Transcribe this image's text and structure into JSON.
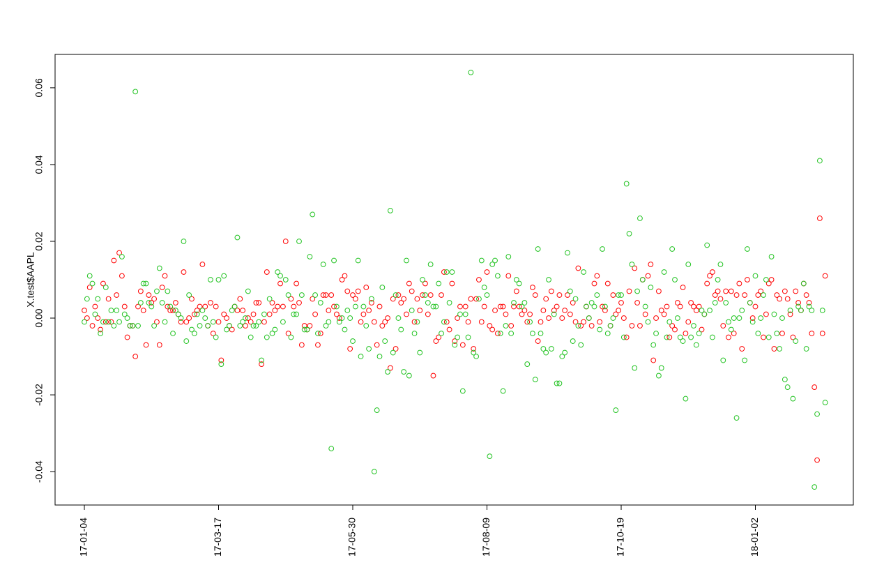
{
  "chart_data": {
    "type": "scatter",
    "y_label": "X.test$AAPL",
    "categories": [
      "17-01-04",
      null,
      null,
      null,
      null,
      null,
      null,
      null,
      null,
      null,
      null,
      null,
      null,
      null,
      null,
      null,
      null,
      null,
      null,
      null,
      null,
      null,
      null,
      null,
      null,
      null,
      null,
      null,
      null,
      null,
      null,
      null,
      null,
      null,
      null,
      null,
      null,
      null,
      null,
      null,
      null,
      null,
      null,
      null,
      null,
      null,
      null,
      null,
      null,
      null,
      "17-03-17",
      null,
      null,
      null,
      null,
      null,
      null,
      null,
      null,
      null,
      null,
      null,
      null,
      null,
      null,
      null,
      null,
      null,
      null,
      null,
      null,
      null,
      null,
      null,
      null,
      null,
      null,
      null,
      null,
      null,
      null,
      null,
      null,
      null,
      null,
      null,
      null,
      null,
      null,
      null,
      null,
      null,
      null,
      null,
      null,
      null,
      null,
      null,
      null,
      null,
      "17-05-30",
      null,
      null,
      null,
      null,
      null,
      null,
      null,
      null,
      null,
      null,
      null,
      null,
      null,
      null,
      null,
      null,
      null,
      null,
      null,
      null,
      null,
      null,
      null,
      null,
      null,
      null,
      null,
      null,
      null,
      null,
      null,
      null,
      null,
      null,
      null,
      null,
      null,
      null,
      null,
      null,
      null,
      null,
      null,
      null,
      null,
      null,
      null,
      null,
      null,
      "17-08-09",
      null,
      null,
      null,
      null,
      null,
      null,
      null,
      null,
      null,
      null,
      null,
      null,
      null,
      null,
      null,
      null,
      null,
      null,
      null,
      null,
      null,
      null,
      null,
      null,
      null,
      null,
      null,
      null,
      null,
      null,
      null,
      null,
      null,
      null,
      null,
      null,
      null,
      null,
      null,
      null,
      null,
      null,
      null,
      null,
      null,
      null,
      null,
      null,
      null,
      "17-10-19",
      null,
      null,
      null,
      null,
      null,
      null,
      null,
      null,
      null,
      null,
      null,
      null,
      null,
      null,
      null,
      null,
      null,
      null,
      null,
      null,
      null,
      null,
      null,
      null,
      null,
      null,
      null,
      null,
      null,
      null,
      null,
      null,
      null,
      null,
      null,
      null,
      null,
      null,
      null,
      null,
      null,
      null,
      null,
      null,
      null,
      null,
      null,
      null,
      null,
      "18-01-02",
      null,
      null,
      null,
      null,
      null,
      null,
      null,
      null,
      null,
      null,
      null,
      null,
      null,
      null,
      null,
      null,
      null,
      null,
      null,
      null,
      null,
      null,
      null,
      null,
      null,
      null,
      null,
      null,
      null,
      null,
      null,
      null,
      null,
      null,
      null,
      null,
      null,
      null,
      null,
      null,
      null,
      null,
      null,
      null,
      null,
      null,
      null,
      null,
      null,
      null,
      null,
      null,
      null,
      null,
      null,
      null,
      null,
      null,
      null,
      null,
      null,
      null,
      null,
      null,
      null,
      null,
      null,
      null,
      null,
      null,
      null,
      null,
      null,
      null,
      null,
      null
    ],
    "series": [
      {
        "color": "#ff0000",
        "values": [
          0.002,
          0.0,
          0.008,
          -0.002,
          0.003,
          0.0,
          -0.003,
          0.009,
          -0.001,
          0.005,
          -0.001,
          0.015,
          0.006,
          0.017,
          0.011,
          0.003,
          -0.005,
          -0.002,
          -0.002,
          -0.01,
          0.003,
          0.007,
          0.002,
          -0.007,
          0.006,
          0.004,
          0.005,
          -0.001,
          -0.007,
          0.008,
          0.011,
          0.003,
          0.002,
          0.002,
          0.004,
          0.001,
          -0.001,
          0.012,
          -0.001,
          0.0,
          0.005,
          0.001,
          0.002,
          0.003,
          0.014,
          0.003,
          -0.002,
          0.004,
          -0.004,
          0.003,
          -0.001,
          -0.011,
          0.001,
          0.0,
          -0.002,
          -0.003,
          0.003,
          0.002,
          0.005,
          0.002,
          -0.002,
          0.0,
          -0.001,
          0.001,
          0.004,
          0.004,
          -0.012,
          -0.001,
          0.012,
          0.001,
          0.004,
          0.002,
          0.003,
          0.009,
          0.003,
          0.02,
          -0.004,
          0.005,
          0.003,
          0.009,
          0.004,
          -0.007,
          -0.002,
          -0.003,
          -0.002,
          0.005,
          0.001,
          -0.007,
          -0.004,
          0.006,
          0.006,
          0.002,
          0.006,
          0.003,
          0.001,
          0.0,
          0.01,
          0.011,
          0.007,
          -0.008,
          0.006,
          0.005,
          0.007,
          -0.001,
          0.001,
          0.008,
          0.002,
          0.004,
          -0.001,
          -0.007,
          0.003,
          -0.002,
          -0.001,
          0.0,
          -0.013,
          0.005,
          -0.008,
          0.006,
          0.004,
          0.005,
          0.001,
          0.009,
          0.007,
          -0.001,
          0.005,
          0.002,
          0.006,
          0.009,
          0.001,
          0.006,
          -0.015,
          -0.006,
          -0.005,
          0.006,
          0.012,
          -0.001,
          -0.003,
          0.009,
          -0.006,
          0.0,
          0.003,
          -0.007,
          0.003,
          -0.001,
          0.005,
          -0.008,
          0.005,
          0.01,
          -0.001,
          0.003,
          0.012,
          -0.002,
          -0.003,
          0.002,
          -0.004,
          0.003,
          0.003,
          0.001,
          0.011,
          -0.002,
          0.003,
          0.007,
          0.003,
          0.001,
          0.002,
          -0.001,
          0.001,
          0.008,
          0.006,
          -0.006,
          -0.001,
          0.002,
          0.005,
          0.0,
          0.007,
          0.002,
          0.003,
          0.006,
          0.0,
          0.002,
          0.006,
          0.001,
          0.004,
          -0.001,
          0.013,
          -0.002,
          -0.001,
          0.003,
          0.0,
          -0.002,
          0.009,
          0.011,
          -0.001,
          0.003,
          0.002,
          0.009,
          -0.002,
          0.006,
          0.001,
          0.002,
          0.004,
          0.0,
          -0.005,
          0.007,
          -0.002,
          0.013,
          0.004,
          -0.002,
          0.01,
          0.001,
          0.011,
          0.014,
          -0.011,
          0.0,
          0.007,
          0.002,
          0.001,
          0.003,
          -0.005,
          -0.002,
          -0.003,
          0.004,
          0.003,
          0.008,
          -0.004,
          -0.001,
          0.004,
          0.003,
          0.002,
          0.003,
          -0.003,
          0.001,
          0.009,
          0.011,
          0.012,
          0.006,
          0.007,
          0.005,
          -0.002,
          0.007,
          -0.005,
          0.007,
          -0.004,
          0.006,
          0.009,
          -0.008,
          0.006,
          0.01,
          0.004,
          0.0,
          0.003,
          0.006,
          0.007,
          -0.005,
          0.001,
          0.009,
          0.01,
          -0.008,
          0.006,
          0.005,
          -0.004,
          0.007,
          0.005,
          0.001,
          -0.005,
          0.007,
          0.004,
          0.002,
          0.009,
          0.006,
          0.004,
          -0.004,
          -0.018,
          -0.037,
          0.026,
          -0.004,
          0.011
        ]
      },
      {
        "color": "#22c322",
        "values": [
          -0.001,
          0.005,
          0.011,
          0.009,
          0.001,
          0.005,
          -0.004,
          -0.001,
          0.008,
          -0.001,
          0.002,
          -0.002,
          0.002,
          -0.001,
          0.016,
          0.001,
          0.0,
          -0.002,
          -0.002,
          0.059,
          -0.002,
          0.004,
          0.009,
          0.009,
          0.004,
          0.003,
          -0.002,
          0.007,
          0.013,
          0.004,
          -0.001,
          0.007,
          0.003,
          -0.004,
          0.002,
          0.001,
          0.0,
          0.02,
          -0.006,
          0.006,
          -0.003,
          -0.004,
          0.001,
          -0.002,
          0.002,
          0.0,
          -0.002,
          0.01,
          -0.001,
          -0.005,
          0.01,
          -0.012,
          0.011,
          -0.003,
          -0.002,
          0.002,
          0.003,
          0.021,
          -0.002,
          -0.001,
          0.0,
          0.007,
          -0.005,
          -0.002,
          -0.002,
          -0.001,
          -0.011,
          0.001,
          -0.005,
          0.005,
          -0.004,
          -0.003,
          0.012,
          0.011,
          -0.001,
          0.01,
          0.006,
          -0.005,
          0.001,
          0.001,
          0.02,
          0.006,
          -0.003,
          -0.003,
          0.016,
          0.027,
          0.006,
          -0.004,
          0.004,
          0.014,
          -0.002,
          -0.001,
          -0.034,
          0.015,
          0.003,
          -0.001,
          0.0,
          -0.003,
          0.002,
          0.0,
          -0.006,
          0.003,
          0.015,
          -0.01,
          0.003,
          -0.002,
          -0.008,
          0.005,
          -0.04,
          -0.024,
          -0.01,
          0.008,
          -0.006,
          -0.014,
          0.028,
          -0.009,
          0.006,
          0.0,
          -0.003,
          -0.014,
          0.015,
          -0.015,
          0.002,
          -0.004,
          -0.001,
          -0.009,
          0.01,
          0.006,
          0.004,
          0.014,
          0.003,
          0.003,
          0.009,
          -0.004,
          -0.001,
          0.012,
          0.004,
          0.012,
          -0.007,
          -0.005,
          0.001,
          -0.019,
          0.001,
          -0.005,
          0.064,
          -0.009,
          -0.01,
          0.005,
          0.015,
          0.008,
          0.006,
          -0.036,
          0.014,
          0.015,
          0.011,
          -0.004,
          -0.019,
          -0.002,
          0.016,
          -0.004,
          0.004,
          0.01,
          0.009,
          0.003,
          0.004,
          -0.012,
          -0.001,
          -0.004,
          -0.016,
          0.018,
          -0.004,
          -0.008,
          -0.009,
          0.01,
          -0.008,
          0.001,
          -0.017,
          -0.017,
          -0.01,
          -0.009,
          0.017,
          0.007,
          -0.006,
          0.005,
          -0.002,
          -0.007,
          0.012,
          0.003,
          0.0,
          0.004,
          0.003,
          0.006,
          -0.003,
          0.018,
          0.003,
          -0.004,
          -0.002,
          0.0,
          -0.024,
          0.006,
          0.006,
          -0.005,
          0.035,
          0.022,
          0.014,
          -0.013,
          0.007,
          0.026,
          0.01,
          0.003,
          -0.001,
          0.008,
          -0.007,
          -0.004,
          -0.015,
          -0.013,
          0.012,
          -0.005,
          -0.001,
          0.018,
          0.01,
          0.0,
          -0.005,
          -0.006,
          -0.021,
          0.014,
          -0.005,
          -0.002,
          -0.007,
          -0.004,
          0.002,
          0.001,
          0.019,
          0.002,
          -0.005,
          0.004,
          0.01,
          0.014,
          -0.011,
          0.004,
          -0.001,
          -0.003,
          0.0,
          -0.026,
          0.0,
          0.002,
          -0.011,
          0.018,
          0.004,
          -0.001,
          0.011,
          -0.004,
          0.0,
          0.006,
          0.01,
          -0.005,
          0.016,
          0.001,
          -0.004,
          -0.008,
          0.0,
          -0.016,
          -0.018,
          0.002,
          -0.021,
          -0.006,
          0.003,
          0.002,
          0.009,
          -0.008,
          0.003,
          0.002,
          -0.044,
          -0.025,
          0.041,
          0.002,
          -0.022
        ]
      }
    ],
    "ylim": [
      -0.0487,
      0.0687
    ],
    "yticks": [
      -0.04,
      -0.02,
      {
        "value": 0,
        "label": "0.00"
      },
      0.02,
      0.04,
      0.06
    ]
  }
}
